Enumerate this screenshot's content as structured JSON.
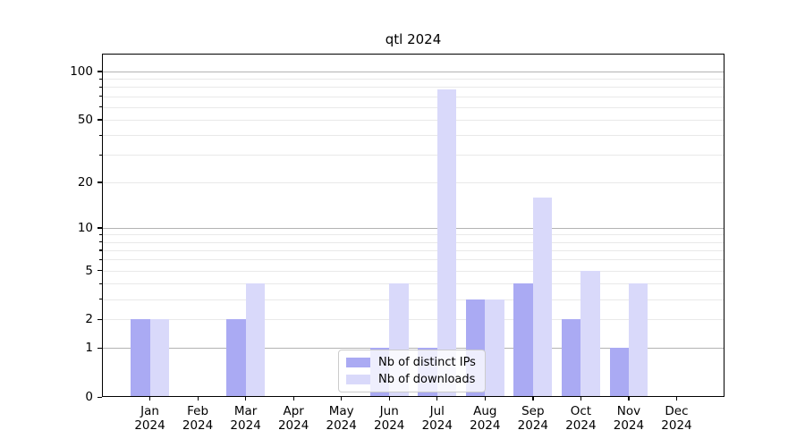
{
  "chart_data": {
    "type": "bar",
    "title": "qtl 2024",
    "categories": [
      {
        "label": "Jan",
        "sub": "2024"
      },
      {
        "label": "Feb",
        "sub": "2024"
      },
      {
        "label": "Mar",
        "sub": "2024"
      },
      {
        "label": "Apr",
        "sub": "2024"
      },
      {
        "label": "May",
        "sub": "2024"
      },
      {
        "label": "Jun",
        "sub": "2024"
      },
      {
        "label": "Jul",
        "sub": "2024"
      },
      {
        "label": "Aug",
        "sub": "2024"
      },
      {
        "label": "Sep",
        "sub": "2024"
      },
      {
        "label": "Oct",
        "sub": "2024"
      },
      {
        "label": "Nov",
        "sub": "2024"
      },
      {
        "label": "Dec",
        "sub": "2024"
      }
    ],
    "series": [
      {
        "name": "Nb of distinct IPs",
        "color": "#aaaaf3",
        "values": [
          2,
          0,
          2,
          0,
          0,
          1,
          1,
          3,
          4,
          2,
          1,
          0
        ]
      },
      {
        "name": "Nb of downloads",
        "color": "#d9d9fa",
        "values": [
          2,
          0,
          4,
          0,
          0,
          4,
          77,
          3,
          16,
          5,
          4,
          0
        ]
      }
    ],
    "yscale": "log1p",
    "y_max": 129,
    "y_ticks": [
      {
        "value": 100,
        "label": "100"
      },
      {
        "value": 50,
        "label": "50"
      },
      {
        "value": 20,
        "label": "20"
      },
      {
        "value": 10,
        "label": "10"
      },
      {
        "value": 5,
        "label": "5"
      },
      {
        "value": 2,
        "label": "2"
      },
      {
        "value": 1,
        "label": "1"
      },
      {
        "value": 0,
        "label": "0"
      }
    ],
    "gridlines": {
      "major": [
        1,
        10,
        100
      ],
      "minor": [
        2,
        3,
        4,
        5,
        6,
        7,
        8,
        9,
        20,
        30,
        40,
        50,
        60,
        70,
        80,
        90
      ]
    },
    "legend_position": "lower center",
    "colors": {
      "major_grid": "#b3b3b3",
      "minor_grid": "#e9e9e9",
      "axis": "#000000"
    }
  }
}
